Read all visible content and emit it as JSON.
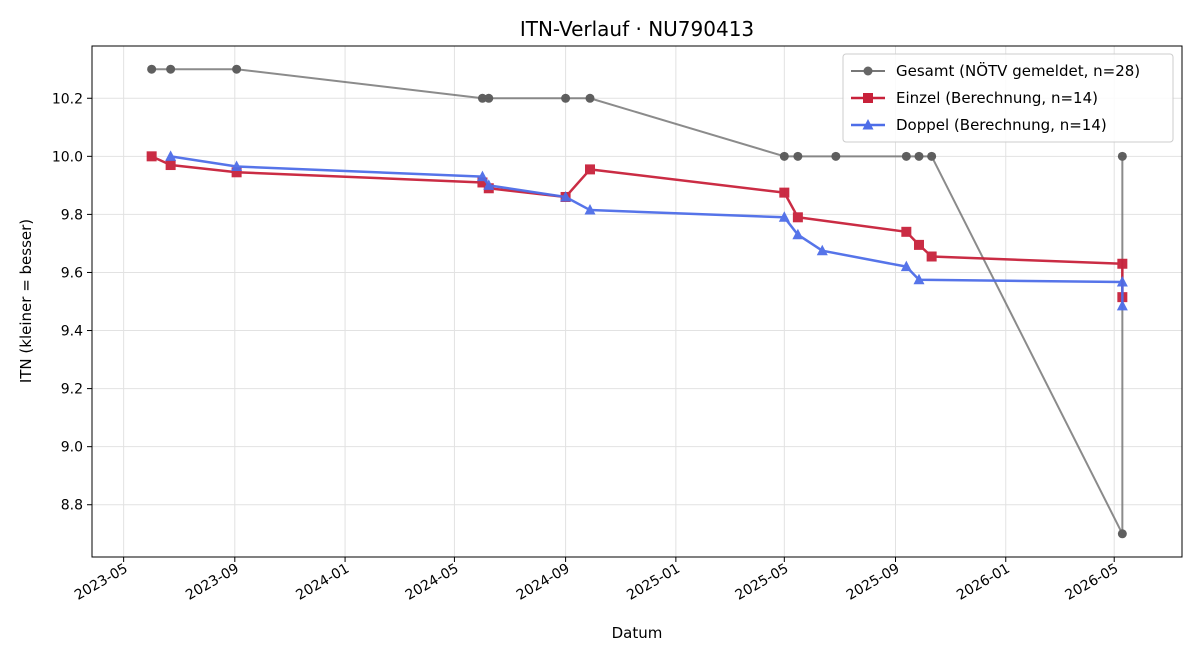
{
  "chart_data": {
    "type": "line",
    "title": "ITN-Verlauf · NU790413",
    "xlabel": "Datum",
    "ylabel": "ITN  (kleiner = besser)",
    "grid": true,
    "legend_position": "top-right",
    "x_ticks": [
      "2023-05",
      "2023-09",
      "2024-01",
      "2024-05",
      "2024-09",
      "2025-01",
      "2025-05",
      "2025-09",
      "2026-01",
      "2026-05"
    ],
    "y_ticks": [
      "8.8",
      "9.0",
      "9.2",
      "9.4",
      "9.6",
      "9.8",
      "10.0",
      "10.2"
    ],
    "series": [
      {
        "name": "Gesamt (NÖTV gemeldet, n=28)",
        "color": "#777777",
        "marker": "circle",
        "points": [
          [
            "2023-06-01",
            10.3
          ],
          [
            "2023-06-22",
            10.3
          ],
          [
            "2023-09-03",
            10.3
          ],
          [
            "2024-06-01",
            10.2
          ],
          [
            "2024-06-08",
            10.2
          ],
          [
            "2024-09-01",
            10.2
          ],
          [
            "2024-09-28",
            10.2
          ],
          [
            "2025-05-01",
            10.0
          ],
          [
            "2025-05-16",
            10.0
          ],
          [
            "2025-06-27",
            10.0
          ],
          [
            "2025-09-13",
            10.0
          ],
          [
            "2025-09-27",
            10.0
          ],
          [
            "2025-10-11",
            10.0
          ],
          [
            "2026-05-10",
            8.7
          ],
          [
            "2026-05-10",
            10.0
          ]
        ]
      },
      {
        "name": "Einzel (Berechnung, n=14)",
        "color": "#c8213a",
        "marker": "square",
        "points": [
          [
            "2023-06-01",
            10.0
          ],
          [
            "2023-06-22",
            9.97
          ],
          [
            "2023-09-03",
            9.945
          ],
          [
            "2024-06-01",
            9.91
          ],
          [
            "2024-06-08",
            9.89
          ],
          [
            "2024-09-01",
            9.86
          ],
          [
            "2024-09-28",
            9.955
          ],
          [
            "2025-05-01",
            9.875
          ],
          [
            "2025-05-16",
            9.79
          ],
          [
            "2025-09-13",
            9.74
          ],
          [
            "2025-09-27",
            9.695
          ],
          [
            "2025-10-11",
            9.655
          ],
          [
            "2026-05-10",
            9.63
          ],
          [
            "2026-05-10",
            9.515
          ]
        ]
      },
      {
        "name": "Doppel (Berechnung, n=14)",
        "color": "#4d6de8",
        "marker": "triangle",
        "points": [
          [
            "2023-06-22",
            10.0
          ],
          [
            "2023-09-03",
            9.965
          ],
          [
            "2024-06-01",
            9.93
          ],
          [
            "2024-06-08",
            9.9
          ],
          [
            "2024-09-01",
            9.86
          ],
          [
            "2024-09-28",
            9.815
          ],
          [
            "2025-05-01",
            9.79
          ],
          [
            "2025-05-16",
            9.73
          ],
          [
            "2025-06-12",
            9.675
          ],
          [
            "2025-09-13",
            9.62
          ],
          [
            "2025-09-27",
            9.575
          ],
          [
            "2026-05-10",
            9.567
          ],
          [
            "2026-05-10",
            9.485
          ]
        ]
      }
    ]
  }
}
